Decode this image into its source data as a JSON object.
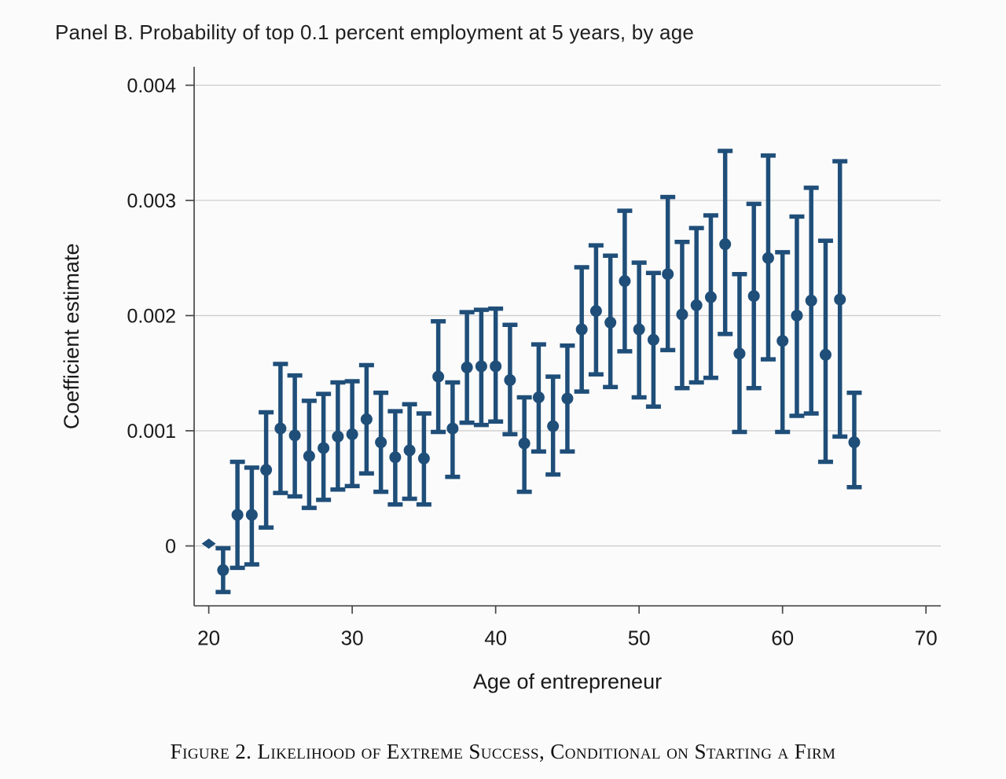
{
  "page": {
    "panel_title": "Panel B. Probability of top 0.1 percent employment at 5 years, by age",
    "caption": "Figure 2. Likelihood of Extreme Success, Conditional on Starting a Firm"
  },
  "chart_data": {
    "type": "scatter",
    "subtype": "coefficient-estimates-with-confidence-intervals",
    "title": "Panel B. Probability of top 0.1 percent employment at 5 years, by age",
    "xlabel": "Age of entrepreneur",
    "ylabel": "Coefficient estimate",
    "xlim": [
      18.98,
      71.03
    ],
    "ylim": [
      -0.00052,
      0.00416
    ],
    "x_ticks": [
      20,
      30,
      40,
      50,
      60,
      70
    ],
    "y_ticks": [
      0,
      0.001,
      0.002,
      0.003,
      0.004
    ],
    "y_tick_labels": [
      "0",
      "0.001",
      "0.002",
      "0.003",
      "0.004"
    ],
    "grid": "horizontal",
    "legend": "none",
    "colors": {
      "marker": "#1F4E79",
      "gridline": "#c9c9c9",
      "axis": "#474747",
      "text": "#1a1a1a"
    },
    "points": [
      {
        "age": 20,
        "est": 2e-05,
        "ci_low": 2e-05,
        "ci_high": 2e-05,
        "marker": "diamond"
      },
      {
        "age": 21,
        "est": -0.00021,
        "ci_low": -0.0004,
        "ci_high": -2e-05,
        "marker": "circle"
      },
      {
        "age": 22,
        "est": 0.00027,
        "ci_low": -0.00019,
        "ci_high": 0.00073,
        "marker": "circle"
      },
      {
        "age": 23,
        "est": 0.00027,
        "ci_low": -0.00016,
        "ci_high": 0.00068,
        "marker": "circle"
      },
      {
        "age": 24,
        "est": 0.00066,
        "ci_low": 0.00016,
        "ci_high": 0.00116,
        "marker": "circle"
      },
      {
        "age": 25,
        "est": 0.00102,
        "ci_low": 0.00046,
        "ci_high": 0.00158,
        "marker": "circle"
      },
      {
        "age": 26,
        "est": 0.00096,
        "ci_low": 0.00043,
        "ci_high": 0.00148,
        "marker": "circle"
      },
      {
        "age": 27,
        "est": 0.00078,
        "ci_low": 0.00033,
        "ci_high": 0.00126,
        "marker": "circle"
      },
      {
        "age": 28,
        "est": 0.00085,
        "ci_low": 0.0004,
        "ci_high": 0.00132,
        "marker": "circle"
      },
      {
        "age": 29,
        "est": 0.00095,
        "ci_low": 0.00049,
        "ci_high": 0.00142,
        "marker": "circle"
      },
      {
        "age": 30,
        "est": 0.00097,
        "ci_low": 0.00052,
        "ci_high": 0.00143,
        "marker": "circle"
      },
      {
        "age": 31,
        "est": 0.0011,
        "ci_low": 0.00063,
        "ci_high": 0.00157,
        "marker": "circle"
      },
      {
        "age": 32,
        "est": 0.0009,
        "ci_low": 0.00047,
        "ci_high": 0.00133,
        "marker": "circle"
      },
      {
        "age": 33,
        "est": 0.00077,
        "ci_low": 0.00036,
        "ci_high": 0.00117,
        "marker": "circle"
      },
      {
        "age": 34,
        "est": 0.00083,
        "ci_low": 0.00041,
        "ci_high": 0.00123,
        "marker": "circle"
      },
      {
        "age": 35,
        "est": 0.00076,
        "ci_low": 0.00036,
        "ci_high": 0.00115,
        "marker": "circle"
      },
      {
        "age": 36,
        "est": 0.00147,
        "ci_low": 0.00099,
        "ci_high": 0.00195,
        "marker": "circle"
      },
      {
        "age": 37,
        "est": 0.00102,
        "ci_low": 0.0006,
        "ci_high": 0.00142,
        "marker": "circle"
      },
      {
        "age": 38,
        "est": 0.00155,
        "ci_low": 0.00107,
        "ci_high": 0.00203,
        "marker": "circle"
      },
      {
        "age": 39,
        "est": 0.00156,
        "ci_low": 0.00105,
        "ci_high": 0.00205,
        "marker": "circle"
      },
      {
        "age": 40,
        "est": 0.00156,
        "ci_low": 0.00108,
        "ci_high": 0.00206,
        "marker": "circle"
      },
      {
        "age": 41,
        "est": 0.00144,
        "ci_low": 0.00097,
        "ci_high": 0.00192,
        "marker": "circle"
      },
      {
        "age": 42,
        "est": 0.00089,
        "ci_low": 0.00047,
        "ci_high": 0.00129,
        "marker": "circle"
      },
      {
        "age": 43,
        "est": 0.00129,
        "ci_low": 0.00082,
        "ci_high": 0.00175,
        "marker": "circle"
      },
      {
        "age": 44,
        "est": 0.00104,
        "ci_low": 0.00062,
        "ci_high": 0.00147,
        "marker": "circle"
      },
      {
        "age": 45,
        "est": 0.00128,
        "ci_low": 0.00082,
        "ci_high": 0.00174,
        "marker": "circle"
      },
      {
        "age": 46,
        "est": 0.00188,
        "ci_low": 0.00134,
        "ci_high": 0.00242,
        "marker": "circle"
      },
      {
        "age": 47,
        "est": 0.00204,
        "ci_low": 0.00149,
        "ci_high": 0.00261,
        "marker": "circle"
      },
      {
        "age": 48,
        "est": 0.00194,
        "ci_low": 0.00138,
        "ci_high": 0.00252,
        "marker": "circle"
      },
      {
        "age": 49,
        "est": 0.0023,
        "ci_low": 0.00169,
        "ci_high": 0.00291,
        "marker": "circle"
      },
      {
        "age": 50,
        "est": 0.00188,
        "ci_low": 0.00129,
        "ci_high": 0.00246,
        "marker": "circle"
      },
      {
        "age": 51,
        "est": 0.00179,
        "ci_low": 0.00121,
        "ci_high": 0.00237,
        "marker": "circle"
      },
      {
        "age": 52,
        "est": 0.00236,
        "ci_low": 0.0017,
        "ci_high": 0.00303,
        "marker": "circle"
      },
      {
        "age": 53,
        "est": 0.00201,
        "ci_low": 0.00137,
        "ci_high": 0.00264,
        "marker": "circle"
      },
      {
        "age": 54,
        "est": 0.00209,
        "ci_low": 0.00142,
        "ci_high": 0.00276,
        "marker": "circle"
      },
      {
        "age": 55,
        "est": 0.00216,
        "ci_low": 0.00146,
        "ci_high": 0.00287,
        "marker": "circle"
      },
      {
        "age": 56,
        "est": 0.00262,
        "ci_low": 0.00184,
        "ci_high": 0.00343,
        "marker": "circle"
      },
      {
        "age": 57,
        "est": 0.00167,
        "ci_low": 0.00099,
        "ci_high": 0.00236,
        "marker": "circle"
      },
      {
        "age": 58,
        "est": 0.00217,
        "ci_low": 0.00137,
        "ci_high": 0.00297,
        "marker": "circle"
      },
      {
        "age": 59,
        "est": 0.0025,
        "ci_low": 0.00162,
        "ci_high": 0.00339,
        "marker": "circle"
      },
      {
        "age": 60,
        "est": 0.00178,
        "ci_low": 0.00099,
        "ci_high": 0.00255,
        "marker": "circle"
      },
      {
        "age": 61,
        "est": 0.002,
        "ci_low": 0.00113,
        "ci_high": 0.00286,
        "marker": "circle"
      },
      {
        "age": 62,
        "est": 0.00213,
        "ci_low": 0.00115,
        "ci_high": 0.00311,
        "marker": "circle"
      },
      {
        "age": 63,
        "est": 0.00166,
        "ci_low": 0.00073,
        "ci_high": 0.00265,
        "marker": "circle"
      },
      {
        "age": 64,
        "est": 0.00214,
        "ci_low": 0.00095,
        "ci_high": 0.00334,
        "marker": "circle"
      },
      {
        "age": 65,
        "est": 0.0009,
        "ci_low": 0.00051,
        "ci_high": 0.00133,
        "marker": "circle"
      }
    ]
  }
}
